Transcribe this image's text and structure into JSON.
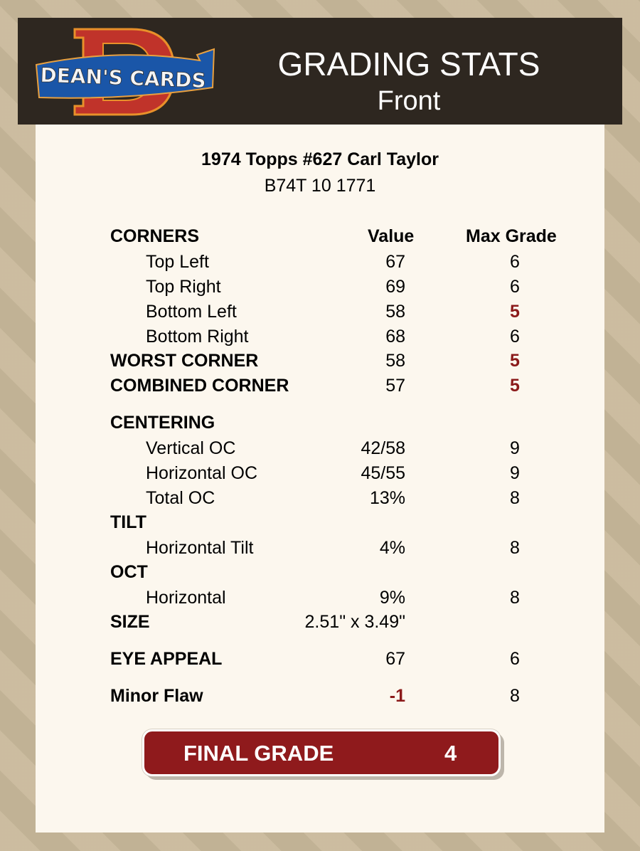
{
  "header": {
    "logo_text": "DEAN'S CARDS",
    "title": "GRADING STATS",
    "subtitle": "Front"
  },
  "card": {
    "name": "1974 Topps #627 Carl Taylor",
    "code": "B74T 10 1771"
  },
  "columns": {
    "value": "Value",
    "max": "Max Grade"
  },
  "rows": [
    {
      "label": "CORNERS",
      "value": "",
      "max": "",
      "type": "head"
    },
    {
      "label": "Top Left",
      "value": "67",
      "max": "6",
      "type": "sub"
    },
    {
      "label": "Top Right",
      "value": "69",
      "max": "6",
      "type": "sub"
    },
    {
      "label": "Bottom Left",
      "value": "58",
      "max": "5",
      "type": "sub",
      "max_red": true
    },
    {
      "label": "Bottom Right",
      "value": "68",
      "max": "6",
      "type": "sub"
    },
    {
      "label": "WORST CORNER",
      "value": "58",
      "max": "5",
      "type": "head",
      "max_red": true
    },
    {
      "label": "COMBINED CORNER",
      "value": "57",
      "max": "5",
      "type": "head",
      "max_red": true
    },
    {
      "label": "CENTERING",
      "value": "",
      "max": "",
      "type": "head"
    },
    {
      "label": "Vertical OC",
      "value": "42/58",
      "max": "9",
      "type": "sub"
    },
    {
      "label": "Horizontal OC",
      "value": "45/55",
      "max": "9",
      "type": "sub"
    },
    {
      "label": "Total OC",
      "value": "13%",
      "max": "8",
      "type": "sub"
    },
    {
      "label": "TILT",
      "value": "",
      "max": "",
      "type": "head"
    },
    {
      "label": "Horizontal Tilt",
      "value": "4%",
      "max": "8",
      "type": "sub"
    },
    {
      "label": "OCT",
      "value": "",
      "max": "",
      "type": "head"
    },
    {
      "label": "Horizontal",
      "value": "9%",
      "max": "8",
      "type": "sub"
    },
    {
      "label": "SIZE",
      "value": "2.51\" x 3.49\"",
      "max": "",
      "type": "head"
    },
    {
      "label": "EYE APPEAL",
      "value": "67",
      "max": "6",
      "type": "head"
    },
    {
      "label": "Minor Flaw",
      "value": "-1",
      "max": "8",
      "type": "head",
      "value_red": true
    }
  ],
  "final": {
    "label": "FINAL GRADE",
    "value": "4"
  },
  "colors": {
    "header_bg": "#2e2720",
    "panel_bg": "#fcf7ee",
    "accent_red": "#8f1a1c"
  }
}
